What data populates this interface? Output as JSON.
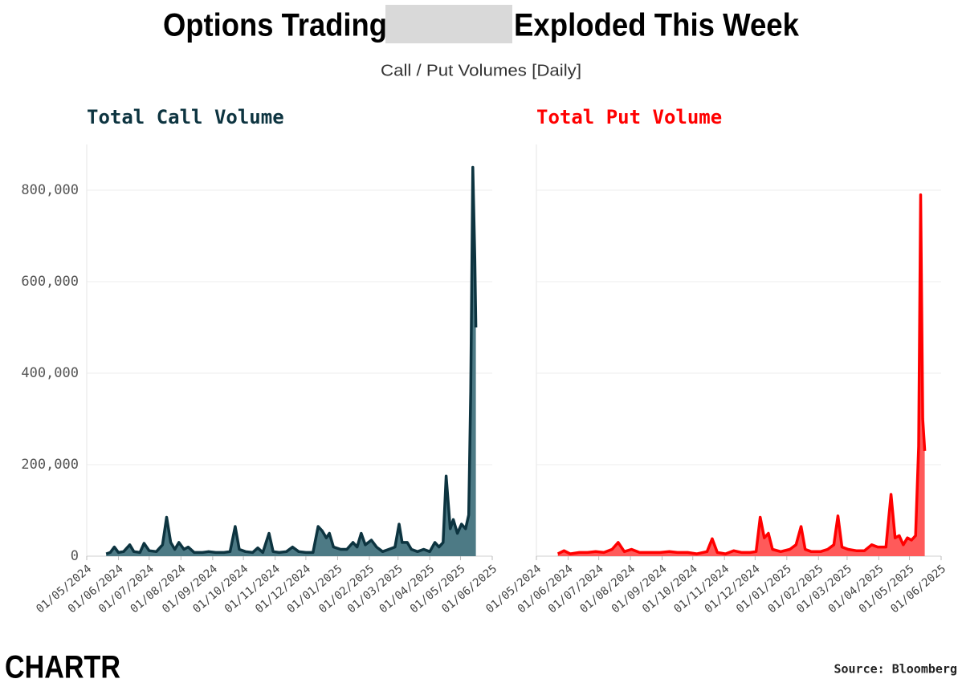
{
  "header": {
    "title": [
      "Options Trading",
      "Exploded This Week"
    ],
    "subtitle": "Call / Put Volumes [Daily]"
  },
  "footer": {
    "logo": "CHARTR",
    "source": "Source: Bloomberg"
  },
  "chart_data": [
    {
      "type": "area",
      "title": "Total Call Volume",
      "color": "#0d3440",
      "fill": "#4d7a85",
      "ylim": [
        0,
        900000
      ],
      "yticks": [
        0,
        {
          "value": 200000,
          "label": "200,000"
        },
        {
          "value": 400000,
          "label": "400,000"
        },
        {
          "value": 600000,
          "label": "600,000"
        },
        {
          "value": 800000,
          "label": "800,000"
        }
      ],
      "xlim": [
        "2024-05-01",
        "2025-06-01"
      ],
      "xticks": [
        {
          "value": "2024-05-01",
          "label": "01/05/2024"
        },
        {
          "value": "2024-06-01",
          "label": "01/06/2024"
        },
        {
          "value": "2024-07-01",
          "label": "01/07/2024"
        },
        {
          "value": "2024-08-01",
          "label": "01/08/2024"
        },
        {
          "value": "2024-09-01",
          "label": "01/09/2024"
        },
        {
          "value": "2024-10-01",
          "label": "01/10/2024"
        },
        {
          "value": "2024-11-01",
          "label": "01/11/2024"
        },
        {
          "value": "2024-12-01",
          "label": "01/12/2024"
        },
        {
          "value": "2025-01-01",
          "label": "01/01/2025"
        },
        {
          "value": "2025-02-01",
          "label": "01/02/2025"
        },
        {
          "value": "2025-03-01",
          "label": "01/03/2025"
        },
        {
          "value": "2025-04-01",
          "label": "01/04/2025"
        },
        {
          "value": "2025-05-01",
          "label": "01/05/2025"
        },
        {
          "value": "2025-06-01",
          "label": "01/06/2025"
        }
      ],
      "grid": true,
      "x": [
        "2024-05-20",
        "2024-05-24",
        "2024-05-28",
        "2024-06-01",
        "2024-06-06",
        "2024-06-12",
        "2024-06-16",
        "2024-06-22",
        "2024-06-26",
        "2024-07-01",
        "2024-07-08",
        "2024-07-14",
        "2024-07-18",
        "2024-07-22",
        "2024-07-26",
        "2024-07-30",
        "2024-08-04",
        "2024-08-08",
        "2024-08-14",
        "2024-08-22",
        "2024-08-28",
        "2024-09-04",
        "2024-09-12",
        "2024-09-18",
        "2024-09-23",
        "2024-09-27",
        "2024-10-03",
        "2024-10-10",
        "2024-10-15",
        "2024-10-20",
        "2024-10-26",
        "2024-10-30",
        "2024-11-05",
        "2024-11-12",
        "2024-11-18",
        "2024-11-24",
        "2024-12-01",
        "2024-12-08",
        "2024-12-13",
        "2024-12-17",
        "2024-12-21",
        "2024-12-24",
        "2024-12-28",
        "2025-01-04",
        "2025-01-10",
        "2025-01-16",
        "2025-01-20",
        "2025-01-24",
        "2025-01-28",
        "2025-02-03",
        "2025-02-08",
        "2025-02-14",
        "2025-02-20",
        "2025-02-26",
        "2025-03-02",
        "2025-03-05",
        "2025-03-10",
        "2025-03-14",
        "2025-03-20",
        "2025-03-26",
        "2025-04-01",
        "2025-04-06",
        "2025-04-10",
        "2025-04-14",
        "2025-04-17",
        "2025-04-21",
        "2025-04-24",
        "2025-04-28",
        "2025-05-02",
        "2025-05-06",
        "2025-05-09",
        "2025-05-11",
        "2025-05-13",
        "2025-05-15",
        "2025-05-16"
      ],
      "values": [
        5000,
        8000,
        20000,
        8000,
        10000,
        25000,
        10000,
        8000,
        28000,
        12000,
        10000,
        25000,
        85000,
        30000,
        15000,
        30000,
        15000,
        20000,
        8000,
        8000,
        10000,
        8000,
        8000,
        10000,
        65000,
        15000,
        10000,
        8000,
        18000,
        8000,
        50000,
        10000,
        8000,
        10000,
        20000,
        10000,
        8000,
        8000,
        65000,
        55000,
        40000,
        50000,
        20000,
        15000,
        15000,
        30000,
        20000,
        50000,
        25000,
        35000,
        20000,
        10000,
        15000,
        20000,
        70000,
        30000,
        30000,
        15000,
        10000,
        15000,
        10000,
        30000,
        20000,
        30000,
        175000,
        60000,
        80000,
        50000,
        70000,
        60000,
        90000,
        360000,
        850000,
        650000,
        500000
      ]
    },
    {
      "type": "area",
      "title": "Total Put Volume",
      "color": "#ff0000",
      "fill": "#ff5a5a",
      "ylim": [
        0,
        900000
      ],
      "yticks": [
        0,
        200000,
        400000,
        600000,
        800000
      ],
      "xlim": [
        "2024-05-01",
        "2025-06-01"
      ],
      "xticks": [
        {
          "value": "2024-05-01",
          "label": "01/05/2024"
        },
        {
          "value": "2024-06-01",
          "label": "01/06/2024"
        },
        {
          "value": "2024-07-01",
          "label": "01/07/2024"
        },
        {
          "value": "2024-08-01",
          "label": "01/08/2024"
        },
        {
          "value": "2024-09-01",
          "label": "01/09/2024"
        },
        {
          "value": "2024-10-01",
          "label": "01/10/2024"
        },
        {
          "value": "2024-11-01",
          "label": "01/11/2024"
        },
        {
          "value": "2024-12-01",
          "label": "01/12/2024"
        },
        {
          "value": "2025-01-01",
          "label": "01/01/2025"
        },
        {
          "value": "2025-02-01",
          "label": "01/02/2025"
        },
        {
          "value": "2025-03-01",
          "label": "01/03/2025"
        },
        {
          "value": "2025-04-01",
          "label": "01/04/2025"
        },
        {
          "value": "2025-05-01",
          "label": "01/05/2025"
        },
        {
          "value": "2025-06-01",
          "label": "01/06/2025"
        }
      ],
      "grid": true,
      "x": [
        "2024-05-22",
        "2024-05-28",
        "2024-06-03",
        "2024-06-12",
        "2024-06-20",
        "2024-06-28",
        "2024-07-06",
        "2024-07-14",
        "2024-07-20",
        "2024-07-26",
        "2024-08-02",
        "2024-08-10",
        "2024-08-20",
        "2024-08-30",
        "2024-09-08",
        "2024-09-16",
        "2024-09-26",
        "2024-10-05",
        "2024-10-15",
        "2024-10-20",
        "2024-10-25",
        "2024-11-02",
        "2024-11-10",
        "2024-11-18",
        "2024-11-26",
        "2024-12-02",
        "2024-12-06",
        "2024-12-10",
        "2024-12-14",
        "2024-12-18",
        "2024-12-26",
        "2025-01-04",
        "2025-01-10",
        "2025-01-15",
        "2025-01-19",
        "2025-01-25",
        "2025-02-03",
        "2025-02-10",
        "2025-02-16",
        "2025-02-20",
        "2025-02-24",
        "2025-03-02",
        "2025-03-10",
        "2025-03-18",
        "2025-03-25",
        "2025-03-31",
        "2025-04-08",
        "2025-04-13",
        "2025-04-17",
        "2025-04-21",
        "2025-04-25",
        "2025-04-29",
        "2025-05-03",
        "2025-05-07",
        "2025-05-10",
        "2025-05-12",
        "2025-05-14",
        "2025-05-16"
      ],
      "values": [
        5000,
        12000,
        5000,
        8000,
        8000,
        10000,
        8000,
        15000,
        30000,
        10000,
        15000,
        8000,
        8000,
        8000,
        10000,
        8000,
        8000,
        5000,
        10000,
        38000,
        8000,
        5000,
        12000,
        8000,
        8000,
        10000,
        85000,
        40000,
        50000,
        15000,
        10000,
        15000,
        25000,
        65000,
        15000,
        10000,
        10000,
        15000,
        25000,
        88000,
        20000,
        15000,
        12000,
        12000,
        25000,
        20000,
        20000,
        135000,
        40000,
        45000,
        25000,
        40000,
        35000,
        45000,
        240000,
        790000,
        300000,
        230000
      ]
    }
  ]
}
